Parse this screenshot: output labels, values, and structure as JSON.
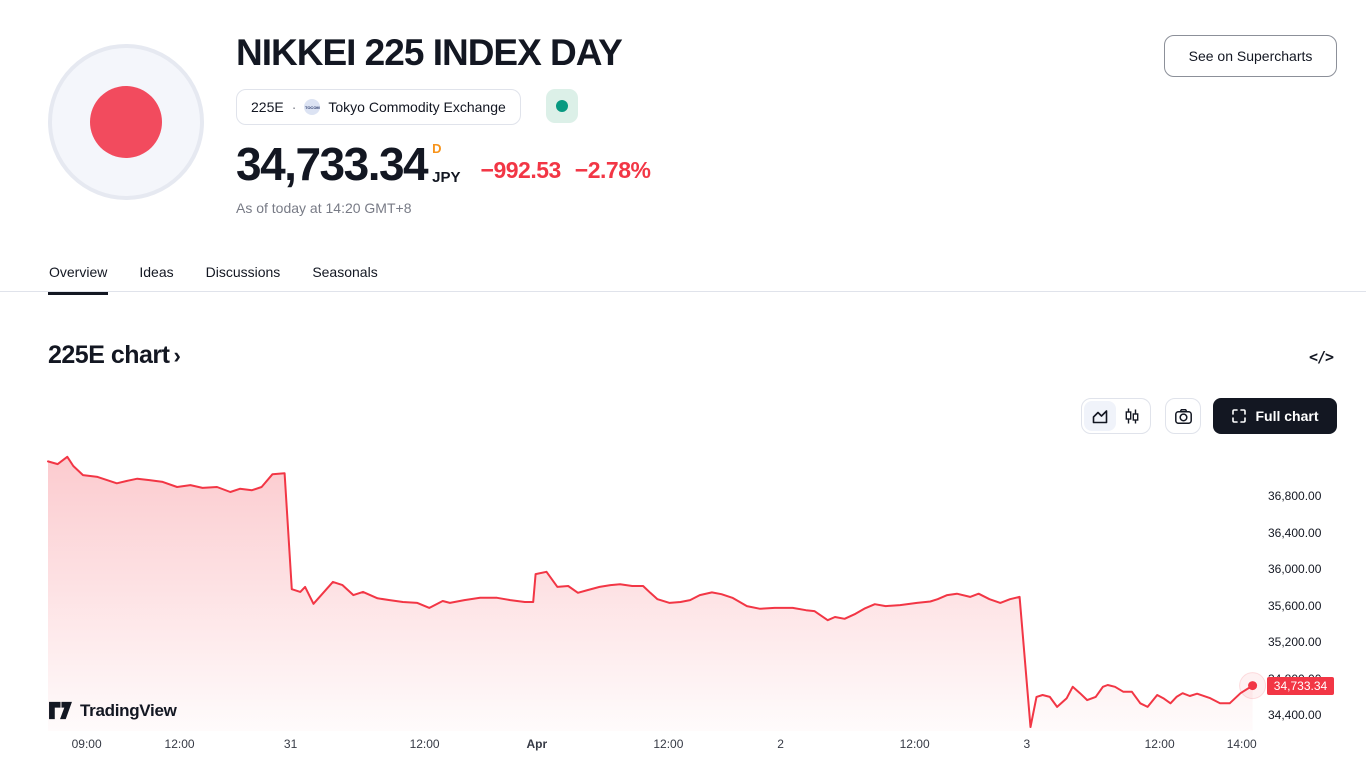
{
  "header": {
    "title": "NIKKEI 225 INDEX DAY",
    "symbol": "225E",
    "separator": "·",
    "exchange_icon_text": "TOCOM",
    "exchange": "Tokyo Commodity Exchange",
    "price": "34,733.34",
    "interval_badge": "D",
    "currency": "JPY",
    "change": "−992.53",
    "change_pct": "−2.78%",
    "as_of": "As of today at 14:20 GMT+8",
    "supercharts_button": "See on Supercharts"
  },
  "tabs": [
    {
      "label": "Overview",
      "active": true
    },
    {
      "label": "Ideas",
      "active": false
    },
    {
      "label": "Discussions",
      "active": false
    },
    {
      "label": "Seasonals",
      "active": false
    }
  ],
  "section": {
    "title": "225E chart",
    "chevron": "›",
    "embed_icon": "</>"
  },
  "toolbar": {
    "full_chart_label": "Full chart"
  },
  "watermark": {
    "text": "TradingView"
  },
  "colors": {
    "accent_red": "#F23645",
    "interval_orange": "#F7931A",
    "status_green": "#089981",
    "status_green_bg": "#DCF0E8",
    "text_primary": "#131722",
    "text_secondary": "#787B86",
    "border": "#E0E3EB",
    "flag_red": "#F24B5E",
    "flag_bg": "#F4F6FB"
  },
  "chart_data": {
    "type": "area",
    "title": "225E chart",
    "xlabel": "",
    "ylabel": "JPY",
    "grid": false,
    "legend": "none",
    "ylim": [
      34236,
      37315
    ],
    "y_ticks": [
      {
        "value": 36800,
        "label": "36,800.00"
      },
      {
        "value": 36400,
        "label": "36,400.00"
      },
      {
        "value": 36000,
        "label": "36,000.00"
      },
      {
        "value": 35600,
        "label": "35,600.00"
      },
      {
        "value": 35200,
        "label": "35,200.00"
      },
      {
        "value": 34800,
        "label": "34,800.00"
      },
      {
        "value": 34400,
        "label": "34,400.00"
      }
    ],
    "x_ticks": [
      {
        "pos": 0.032,
        "label": "09:00",
        "bold": false
      },
      {
        "pos": 0.109,
        "label": "12:00",
        "bold": false
      },
      {
        "pos": 0.201,
        "label": "31",
        "bold": false
      },
      {
        "pos": 0.312,
        "label": "12:00",
        "bold": false
      },
      {
        "pos": 0.405,
        "label": "Apr",
        "bold": true
      },
      {
        "pos": 0.514,
        "label": "12:00",
        "bold": false
      },
      {
        "pos": 0.607,
        "label": "2",
        "bold": false
      },
      {
        "pos": 0.718,
        "label": "12:00",
        "bold": false
      },
      {
        "pos": 0.811,
        "label": "3",
        "bold": false
      },
      {
        "pos": 0.921,
        "label": "12:00",
        "bold": false
      },
      {
        "pos": 0.989,
        "label": "14:00",
        "bold": false
      }
    ],
    "last_price": {
      "value": 34733.34,
      "label": "34,733.34"
    },
    "series": [
      {
        "name": "225E",
        "points": [
          [
            0.0,
            37190
          ],
          [
            0.008,
            37160
          ],
          [
            0.016,
            37240
          ],
          [
            0.021,
            37140
          ],
          [
            0.029,
            37040
          ],
          [
            0.041,
            37020
          ],
          [
            0.057,
            36950
          ],
          [
            0.065,
            36975
          ],
          [
            0.074,
            37000
          ],
          [
            0.084,
            36985
          ],
          [
            0.095,
            36965
          ],
          [
            0.107,
            36910
          ],
          [
            0.118,
            36930
          ],
          [
            0.128,
            36900
          ],
          [
            0.14,
            36910
          ],
          [
            0.151,
            36855
          ],
          [
            0.159,
            36890
          ],
          [
            0.169,
            36875
          ],
          [
            0.177,
            36910
          ],
          [
            0.186,
            37050
          ],
          [
            0.196,
            37060
          ],
          [
            0.202,
            35790
          ],
          [
            0.209,
            35760
          ],
          [
            0.213,
            35815
          ],
          [
            0.22,
            35630
          ],
          [
            0.236,
            35870
          ],
          [
            0.244,
            35835
          ],
          [
            0.253,
            35725
          ],
          [
            0.261,
            35760
          ],
          [
            0.273,
            35690
          ],
          [
            0.283,
            35670
          ],
          [
            0.294,
            35650
          ],
          [
            0.306,
            35640
          ],
          [
            0.316,
            35585
          ],
          [
            0.327,
            35660
          ],
          [
            0.333,
            35640
          ],
          [
            0.345,
            35670
          ],
          [
            0.358,
            35695
          ],
          [
            0.372,
            35695
          ],
          [
            0.383,
            35670
          ],
          [
            0.395,
            35650
          ],
          [
            0.402,
            35650
          ],
          [
            0.404,
            35955
          ],
          [
            0.413,
            35980
          ],
          [
            0.422,
            35815
          ],
          [
            0.431,
            35825
          ],
          [
            0.439,
            35750
          ],
          [
            0.447,
            35780
          ],
          [
            0.457,
            35815
          ],
          [
            0.466,
            35835
          ],
          [
            0.474,
            35845
          ],
          [
            0.484,
            35825
          ],
          [
            0.493,
            35825
          ],
          [
            0.499,
            35750
          ],
          [
            0.505,
            35680
          ],
          [
            0.515,
            35640
          ],
          [
            0.524,
            35650
          ],
          [
            0.532,
            35670
          ],
          [
            0.54,
            35725
          ],
          [
            0.55,
            35755
          ],
          [
            0.558,
            35735
          ],
          [
            0.567,
            35695
          ],
          [
            0.579,
            35605
          ],
          [
            0.59,
            35575
          ],
          [
            0.602,
            35585
          ],
          [
            0.617,
            35585
          ],
          [
            0.628,
            35560
          ],
          [
            0.635,
            35550
          ],
          [
            0.641,
            35495
          ],
          [
            0.646,
            35450
          ],
          [
            0.652,
            35485
          ],
          [
            0.66,
            35465
          ],
          [
            0.669,
            35520
          ],
          [
            0.677,
            35580
          ],
          [
            0.685,
            35625
          ],
          [
            0.694,
            35605
          ],
          [
            0.706,
            35615
          ],
          [
            0.72,
            35640
          ],
          [
            0.731,
            35655
          ],
          [
            0.737,
            35680
          ],
          [
            0.745,
            35725
          ],
          [
            0.753,
            35740
          ],
          [
            0.764,
            35705
          ],
          [
            0.771,
            35740
          ],
          [
            0.78,
            35680
          ],
          [
            0.789,
            35640
          ],
          [
            0.797,
            35680
          ],
          [
            0.805,
            35705
          ],
          [
            0.814,
            34280
          ],
          [
            0.819,
            34610
          ],
          [
            0.824,
            34630
          ],
          [
            0.83,
            34610
          ],
          [
            0.836,
            34500
          ],
          [
            0.844,
            34595
          ],
          [
            0.849,
            34720
          ],
          [
            0.855,
            34650
          ],
          [
            0.861,
            34575
          ],
          [
            0.868,
            34610
          ],
          [
            0.874,
            34720
          ],
          [
            0.878,
            34740
          ],
          [
            0.884,
            34720
          ],
          [
            0.891,
            34665
          ],
          [
            0.898,
            34665
          ],
          [
            0.905,
            34540
          ],
          [
            0.911,
            34500
          ],
          [
            0.919,
            34630
          ],
          [
            0.924,
            34595
          ],
          [
            0.93,
            34540
          ],
          [
            0.935,
            34610
          ],
          [
            0.94,
            34650
          ],
          [
            0.946,
            34620
          ],
          [
            0.952,
            34645
          ],
          [
            0.963,
            34595
          ],
          [
            0.971,
            34540
          ],
          [
            0.979,
            34540
          ],
          [
            0.988,
            34650
          ],
          [
            0.998,
            34733.34
          ]
        ]
      }
    ]
  }
}
